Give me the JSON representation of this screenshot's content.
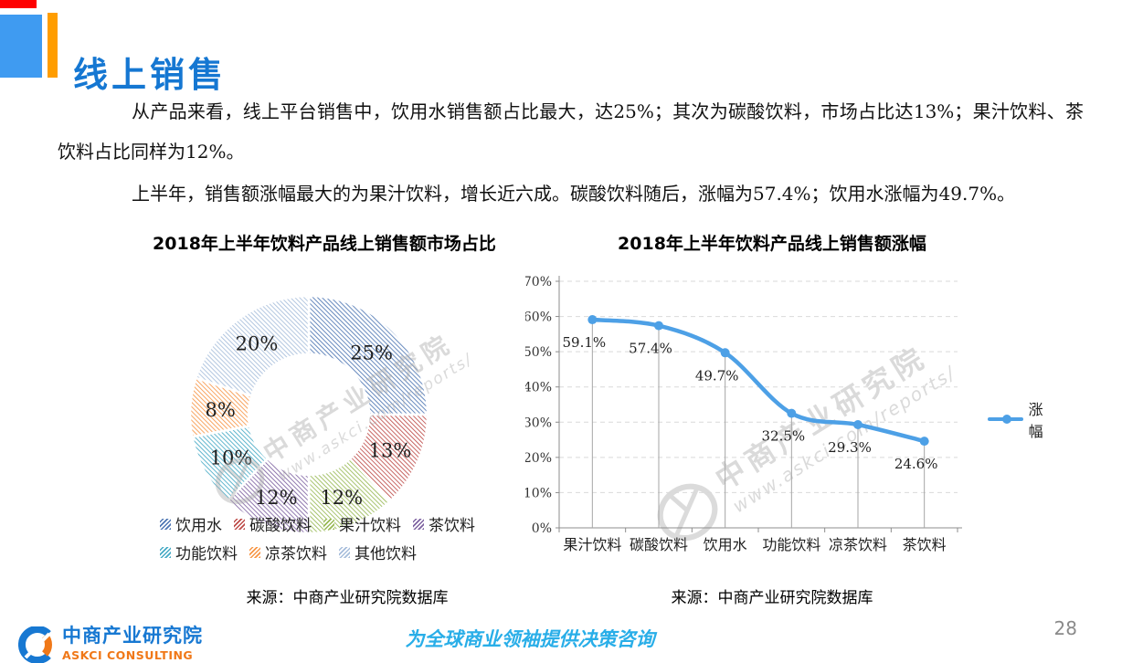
{
  "page": {
    "title": "线上销售",
    "page_number": "28"
  },
  "paragraphs": [
    "从产品来看，线上平台销售中，饮用水销售额占比最大，达25%；其次为碳酸饮料，市场占比达13%；果汁饮料、茶饮料占比同样为12%。",
    "上半年，销售额涨幅最大的为果汁饮料，增长近六成。碳酸饮料随后，涨幅为57.4%；饮用水涨幅为49.7%。"
  ],
  "watermark": {
    "line1": "中商产业研究院",
    "line2": "www.askci.com/reports/"
  },
  "footer": {
    "logo_cn": "中商产业研究院",
    "logo_en": "ASKCI CONSULTING",
    "slogan": "为全球商业领袖提供决策咨询"
  },
  "colors": {
    "accent_blue": "#1577d2",
    "deco_blue": "#3f9bf1",
    "deco_orange": "#ff9d00",
    "deco_red": "#fe0000",
    "line_blue": "#4da0e6"
  },
  "chart_data": [
    {
      "type": "pie",
      "donut": true,
      "title": "2018年上半年饮料产品线上销售额市场占比",
      "categories": [
        "饮用水",
        "碳酸饮料",
        "果汁饮料",
        "茶饮料",
        "功能饮料",
        "凉茶饮料",
        "其他饮料"
      ],
      "values": [
        25,
        13,
        12,
        12,
        10,
        8,
        20
      ],
      "labels": [
        "25%",
        "13%",
        "12%",
        "12%",
        "10%",
        "8%",
        "20%"
      ],
      "colors": [
        "#4d76b3",
        "#be4b48",
        "#98b954",
        "#7e62a1",
        "#46aac5",
        "#f79646",
        "#a6bddb"
      ],
      "legend_position": "bottom",
      "source": "来源：中商产业研究院数据库"
    },
    {
      "type": "line",
      "title": "2018年上半年饮料产品线上销售额涨幅",
      "categories": [
        "果汁饮料",
        "碳酸饮料",
        "饮用水",
        "功能饮料",
        "凉茶饮料",
        "茶饮料"
      ],
      "series": [
        {
          "name": "涨幅",
          "values": [
            59.1,
            57.4,
            49.7,
            32.5,
            29.3,
            24.6
          ]
        }
      ],
      "labels": [
        "59.1%",
        "57.4%",
        "49.7%",
        "32.5%",
        "29.3%",
        "24.6%"
      ],
      "ylim": [
        0,
        70
      ],
      "ytick_step": 10,
      "ytick_suffix": "%",
      "grid": true,
      "line_color": "#4da0e6",
      "legend_position": "right",
      "source": "来源：中商产业研究院数据库"
    }
  ]
}
